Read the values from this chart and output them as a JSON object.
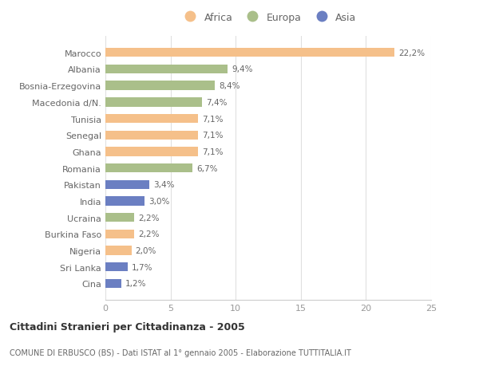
{
  "categories": [
    "Marocco",
    "Albania",
    "Bosnia-Erzegovina",
    "Macedonia d/N.",
    "Tunisia",
    "Senegal",
    "Ghana",
    "Romania",
    "Pakistan",
    "India",
    "Ucraina",
    "Burkina Faso",
    "Nigeria",
    "Sri Lanka",
    "Cina"
  ],
  "values": [
    22.2,
    9.4,
    8.4,
    7.4,
    7.1,
    7.1,
    7.1,
    6.7,
    3.4,
    3.0,
    2.2,
    2.2,
    2.0,
    1.7,
    1.2
  ],
  "continents": [
    "Africa",
    "Europa",
    "Europa",
    "Europa",
    "Africa",
    "Africa",
    "Africa",
    "Europa",
    "Asia",
    "Asia",
    "Europa",
    "Africa",
    "Africa",
    "Asia",
    "Asia"
  ],
  "colors": {
    "Africa": "#F5C08A",
    "Europa": "#AABF8A",
    "Asia": "#6B7FC2"
  },
  "labels": [
    "22,2%",
    "9,4%",
    "8,4%",
    "7,4%",
    "7,1%",
    "7,1%",
    "7,1%",
    "6,7%",
    "3,4%",
    "3,0%",
    "2,2%",
    "2,2%",
    "2,0%",
    "1,7%",
    "1,2%"
  ],
  "title": "Cittadini Stranieri per Cittadinanza - 2005",
  "subtitle": "COMUNE DI ERBUSCO (BS) - Dati ISTAT al 1° gennaio 2005 - Elaborazione TUTTITALIA.IT",
  "xlim": [
    0,
    25
  ],
  "xticks": [
    0,
    5,
    10,
    15,
    20,
    25
  ],
  "legend_order": [
    "Africa",
    "Europa",
    "Asia"
  ],
  "background_color": "#ffffff",
  "label_color": "#666666",
  "tick_color": "#999999"
}
